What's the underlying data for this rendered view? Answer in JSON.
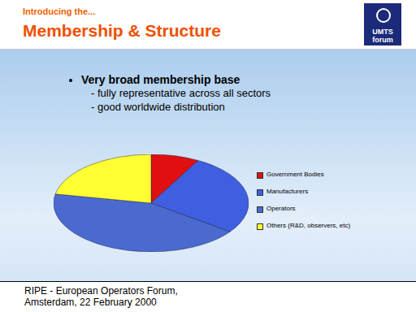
{
  "slide": {
    "kicker": "Introducing the...",
    "title": "Membership & Structure",
    "logo": "UMTS forum",
    "bullet": "Very broad membership base",
    "sub_points": [
      "- fully representative across all sectors",
      "- good worldwide distribution"
    ],
    "footer": [
      "RIPE - European Operators Forum,",
      "Amsterdam, 22 February 2000"
    ]
  },
  "chart_data": {
    "type": "pie",
    "categories": [
      "Government Bodies",
      "Manufacturers",
      "Operators",
      "Others (R&D, observers, etc)"
    ],
    "values": [
      8,
      27,
      43,
      22
    ],
    "colors": [
      "#e01010",
      "#3f5fe0",
      "#4a6ad0",
      "#ffff33"
    ],
    "legend": "right",
    "data_labels": false
  }
}
